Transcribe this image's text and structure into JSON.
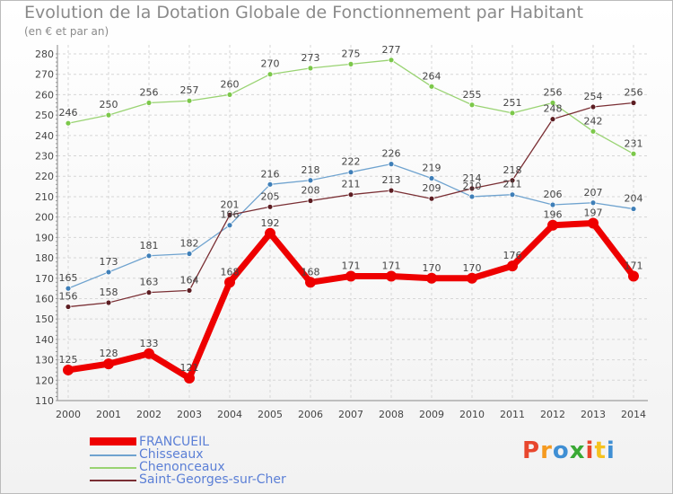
{
  "header": {
    "title": "Evolution de la Dotation Globale de Fonctionnement par Habitant",
    "subtitle": "(en € et par an)"
  },
  "logo": {
    "text": "Proxiti",
    "colors": [
      "#e8462d",
      "#f59a1f",
      "#3f8fd4",
      "#3aa935",
      "#e8462d",
      "#f5c21f",
      "#3f8fd4"
    ]
  },
  "chart_data": {
    "type": "line",
    "title": "Evolution de la Dotation Globale de Fonctionnement par Habitant",
    "subtitle": "(en € et par an)",
    "xlabel": "",
    "ylabel": "",
    "categories": [
      "2000",
      "2001",
      "2002",
      "2003",
      "2004",
      "2005",
      "2006",
      "2007",
      "2008",
      "2009",
      "2010",
      "2011",
      "2012",
      "2013",
      "2014"
    ],
    "ylim": [
      110,
      280
    ],
    "yticks": [
      110,
      120,
      130,
      140,
      150,
      160,
      170,
      180,
      190,
      200,
      210,
      220,
      230,
      240,
      250,
      260,
      270,
      280
    ],
    "grid": true,
    "legend_position": "bottom-left",
    "series": [
      {
        "name": "FRANCUEIL",
        "color": "#ee0000",
        "values": [
          125,
          128,
          133,
          121,
          168,
          192,
          168,
          171,
          171,
          170,
          170,
          176,
          196,
          197,
          171
        ],
        "labels": [
          "125",
          "128",
          "133",
          "121",
          "168",
          "192",
          "168",
          "171",
          "171",
          "170",
          "170",
          "176",
          "196",
          "197",
          "171"
        ]
      },
      {
        "name": "Chisseaux",
        "color": "#6fa3cf",
        "marker_color": "#3f7fb8",
        "values": [
          165,
          173,
          181,
          182,
          196,
          216,
          218,
          222,
          226,
          219,
          210,
          211,
          206,
          207,
          204
        ],
        "labels": [
          "165",
          "173",
          "181",
          "182",
          "196",
          "216",
          "218",
          "222",
          "226",
          "219",
          "210",
          "211",
          "206",
          "207",
          "204"
        ]
      },
      {
        "name": "Chenonceaux",
        "color": "#99d372",
        "marker_color": "#7cc84a",
        "values": [
          246,
          250,
          256,
          257,
          260,
          270,
          273,
          275,
          277,
          264,
          255,
          251,
          256,
          242,
          231
        ],
        "labels": [
          "246",
          "250",
          "256",
          "257",
          "260",
          "270",
          "273",
          "275",
          "277",
          "264",
          "255",
          "251",
          "256",
          "242",
          "231"
        ]
      },
      {
        "name": "Saint-Georges-sur-Cher",
        "color": "#7a2f34",
        "marker_color": "#5c1d22",
        "values": [
          156,
          158,
          163,
          164,
          201,
          205,
          208,
          211,
          213,
          209,
          214,
          218,
          248,
          254,
          256
        ],
        "labels": [
          "156",
          "158",
          "163",
          "164",
          "201",
          "205",
          "208",
          "211",
          "213",
          "209",
          "214",
          "218",
          "248",
          "254",
          "256"
        ]
      }
    ]
  }
}
